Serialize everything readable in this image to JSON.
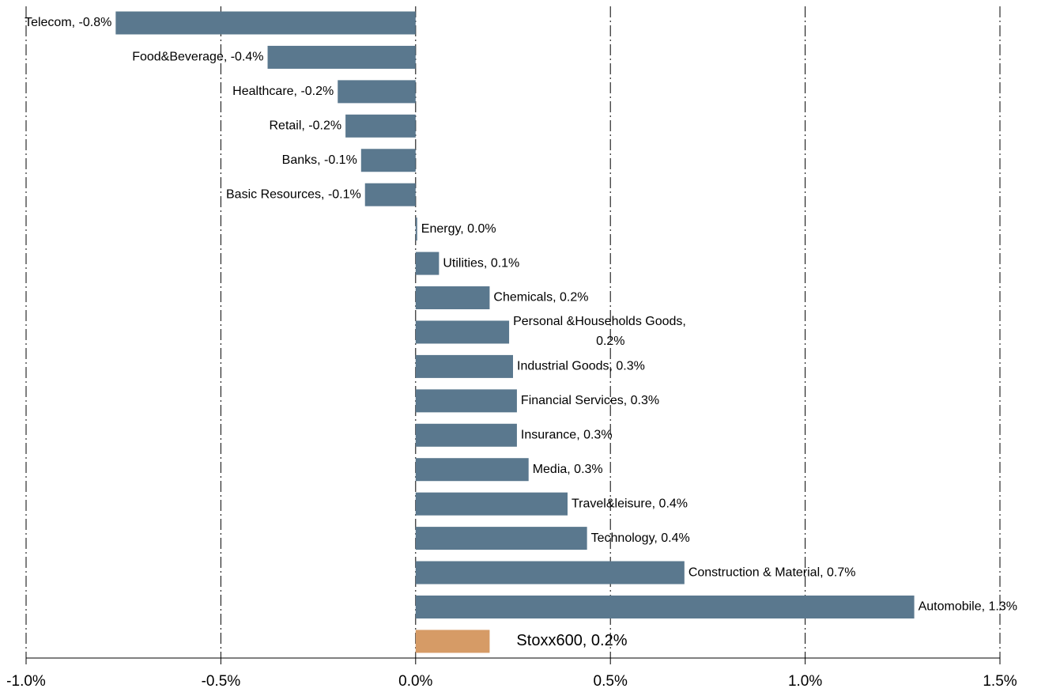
{
  "chart_data": {
    "type": "hbar",
    "values": [
      -0.77,
      -0.38,
      -0.2,
      -0.18,
      -0.14,
      -0.13,
      0.004,
      0.06,
      0.19,
      0.24,
      0.25,
      0.26,
      0.26,
      0.29,
      0.39,
      0.44,
      0.69,
      1.28,
      0.19
    ],
    "value_labels": [
      "Telecom, -0.8%",
      "Food&Beverage, -0.4%",
      "Healthcare, -0.2%",
      "Retail, -0.2%",
      "Banks, -0.1%",
      "Basic Resources, -0.1%",
      "Energy, 0.0%",
      "Utilities, 0.1%",
      "Chemicals, 0.2%",
      "Personal &Households Goods,\n0.2%",
      "Industrial Goods, 0.3%",
      "Financial Services, 0.3%",
      "Insurance, 0.3%",
      "Media, 0.3%",
      "Travel&leisure, 0.4%",
      "Technology, 0.4%",
      "Construction & Material, 0.7%",
      "Automobile, 1.3%",
      "Stoxx600, 0.2%"
    ],
    "colors": [
      "#5a788e",
      "#5a788e",
      "#5a788e",
      "#5a788e",
      "#5a788e",
      "#5a788e",
      "#5a788e",
      "#5a788e",
      "#5a788e",
      "#5a788e",
      "#5a788e",
      "#5a788e",
      "#5a788e",
      "#5a788e",
      "#5a788e",
      "#5a788e",
      "#5a788e",
      "#5a788e",
      "#d69b66"
    ],
    "xlim": [
      -1.0,
      1.5
    ],
    "xticks": [
      {
        "value": -1.0,
        "label": "-1.0%"
      },
      {
        "value": -0.5,
        "label": "-0.5%"
      },
      {
        "value": 0.0,
        "label": "0.0%"
      },
      {
        "value": 0.5,
        "label": "0.5%"
      },
      {
        "value": 1.0,
        "label": "1.0%"
      },
      {
        "value": 1.5,
        "label": "1.5%"
      }
    ],
    "grid": true
  }
}
